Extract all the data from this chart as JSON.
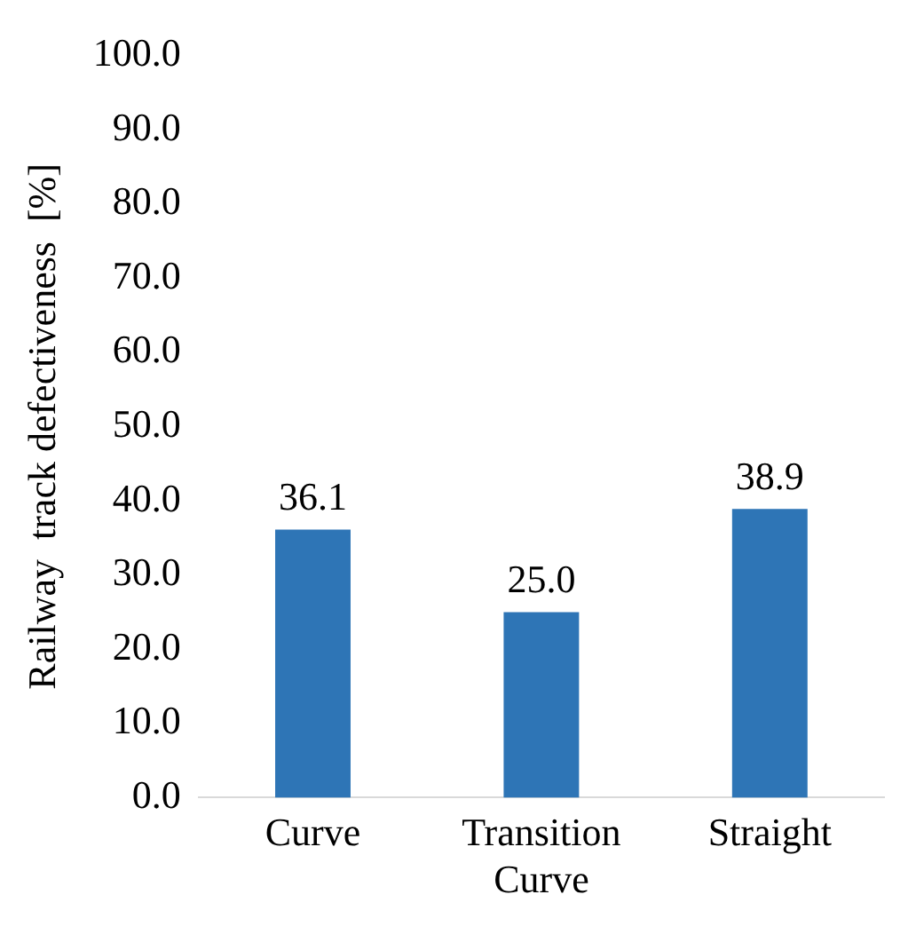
{
  "chart_data": {
    "type": "bar",
    "ylabel": "Railway  track defectiveness  [%]",
    "categories": [
      "Curve",
      "Transition Curve",
      "Straight"
    ],
    "values": [
      36.1,
      25.0,
      38.9
    ],
    "color": "#2e75b6",
    "value_labels": [
      "36.1",
      "25.0",
      "38.9"
    ],
    "ylim": [
      0,
      100
    ],
    "yticks": [
      {
        "value": 0,
        "label": "0.0"
      },
      {
        "value": 10,
        "label": "10.0"
      },
      {
        "value": 20,
        "label": "20.0"
      },
      {
        "value": 30,
        "label": "30.0"
      },
      {
        "value": 40,
        "label": "40.0"
      },
      {
        "value": 50,
        "label": "50.0"
      },
      {
        "value": 60,
        "label": "60.0"
      },
      {
        "value": 70,
        "label": "70.0"
      },
      {
        "value": 80,
        "label": "80.0"
      },
      {
        "value": 90,
        "label": "90.0"
      },
      {
        "value": 100,
        "label": "100.0"
      }
    ],
    "grid": false,
    "legend": false
  }
}
